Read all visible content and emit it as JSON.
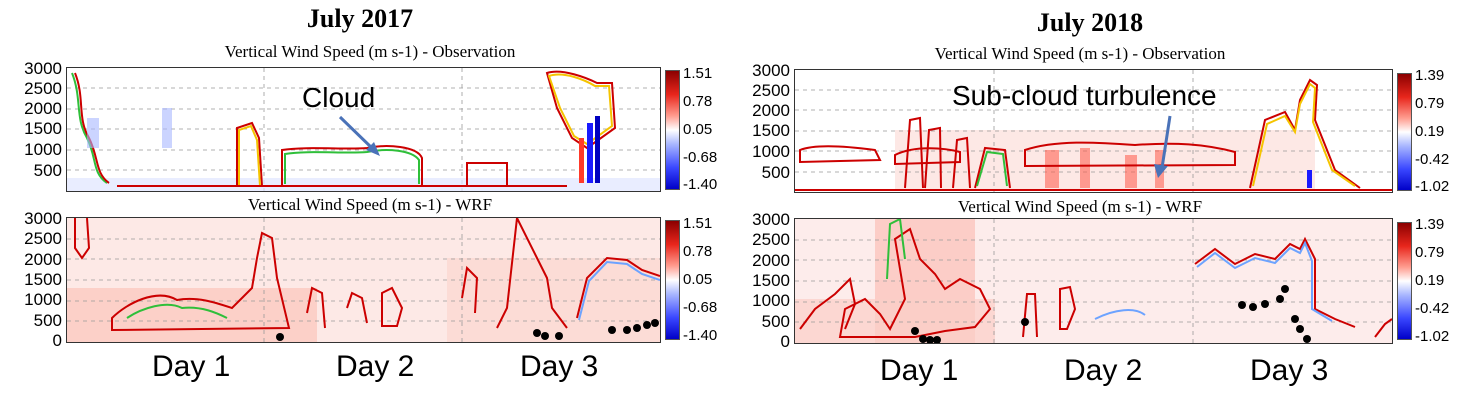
{
  "chart_data": [
    {
      "type": "heatmap",
      "title": "July 2017",
      "x_labels": [
        "Day 1",
        "Day 2",
        "Day 3"
      ],
      "panels": [
        {
          "subtitle": "Vertical Wind Speed (m s-1) - Observation",
          "yticks": [
            "3000",
            "2500",
            "2000",
            "1500",
            "1000",
            "500"
          ],
          "ylim": [
            0,
            3000
          ],
          "colorbar_ticks": [
            "1.51",
            "0.78",
            "0.05",
            "-0.68",
            "-1.40"
          ],
          "annotation": "Cloud"
        },
        {
          "subtitle": "Vertical Wind Speed (m s-1) - WRF",
          "yticks": [
            "3000",
            "2500",
            "2000",
            "1500",
            "1000",
            "500",
            "0"
          ],
          "ylim": [
            0,
            3000
          ],
          "colorbar_ticks": [
            "1.51",
            "0.78",
            "0.05",
            "-0.68",
            "-1.40"
          ]
        }
      ]
    },
    {
      "type": "heatmap",
      "title": "July 2018",
      "x_labels": [
        "Day 1",
        "Day 2",
        "Day 3"
      ],
      "panels": [
        {
          "subtitle": "Vertical Wind Speed (m s-1) - Observation",
          "yticks": [
            "3000",
            "2500",
            "2000",
            "1500",
            "1000",
            "500"
          ],
          "ylim": [
            0,
            3000
          ],
          "colorbar_ticks": [
            "1.39",
            "0.79",
            "0.19",
            "-0.42",
            "-1.02"
          ],
          "annotation": "Sub-cloud turbulence"
        },
        {
          "subtitle": "Vertical Wind Speed (m s-1) - WRF",
          "yticks": [
            "3000",
            "2500",
            "2000",
            "1500",
            "1000",
            "500",
            "0"
          ],
          "ylim": [
            0,
            3000
          ],
          "colorbar_ticks": [
            "1.39",
            "0.79",
            "0.19",
            "-0.42",
            "-1.02"
          ]
        }
      ]
    }
  ]
}
